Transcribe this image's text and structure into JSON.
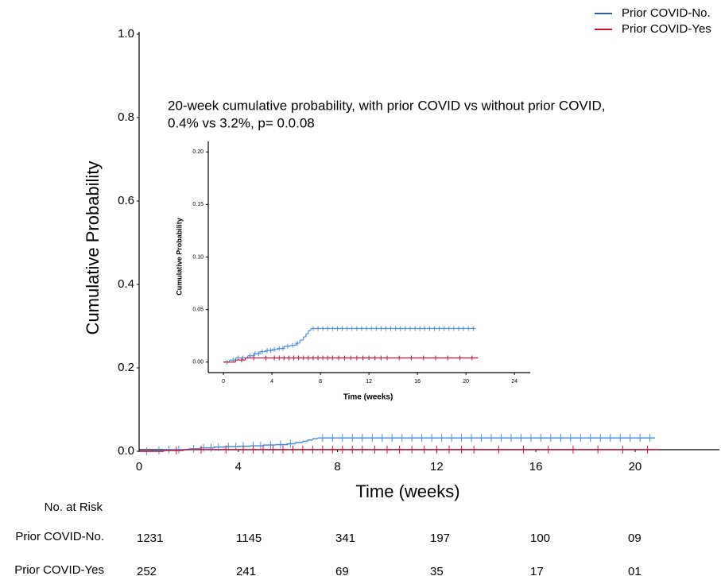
{
  "chart_data": [
    {
      "type": "step",
      "xlabel": "Time (weeks)",
      "ylabel": "Cumulative Probability",
      "annotation": [
        "20-week cumulative probability, with prior COVID  vs without prior COVID,",
        "0.4% vs 3.2%, p= 0.0.08"
      ],
      "xlim": [
        0,
        23.4
      ],
      "ylim": [
        0,
        1
      ],
      "xticks": [
        0,
        4,
        8,
        12,
        16,
        20
      ],
      "yticks": [
        {
          "value": 0,
          "label": "0.0"
        },
        0.2,
        0.4,
        0.6,
        0.8,
        {
          "value": 1,
          "label": "1.0"
        }
      ],
      "legend": "top-right",
      "series": [
        {
          "name": "Prior COVID-No.",
          "color": "#4a8fdc",
          "legend_color": "#2f5f9e",
          "x": [
            0,
            0.5,
            1,
            2,
            2.5,
            3,
            3.5,
            4,
            4.5,
            5,
            5.5,
            6,
            6.3,
            6.6,
            6.8,
            7,
            7.2,
            20.8
          ],
          "values": [
            0,
            0.002,
            0.004,
            0.006,
            0.008,
            0.01,
            0.011,
            0.012,
            0.013,
            0.015,
            0.016,
            0.018,
            0.021,
            0.024,
            0.027,
            0.03,
            0.032,
            0.032
          ],
          "censored": [
            0.3,
            0.8,
            1.2,
            1.6,
            2.2,
            2.6,
            2.9,
            3.2,
            3.6,
            3.9,
            4.2,
            4.6,
            4.9,
            5.3,
            5.7,
            6.1,
            7.4,
            7.8,
            8.2,
            8.6,
            9,
            9.4,
            9.8,
            10.2,
            10.6,
            11,
            11.4,
            11.8,
            12.2,
            12.6,
            13,
            13.4,
            13.8,
            14.2,
            14.6,
            15,
            15.4,
            15.8,
            16.2,
            16.6,
            17,
            17.4,
            17.8,
            18.2,
            18.6,
            19,
            19.4,
            19.8,
            20.2,
            20.6
          ]
        },
        {
          "name": "Prior COVID-Yes",
          "color": "#c8143c",
          "legend_color": "#c8102e",
          "x": [
            0,
            1,
            1.8,
            21
          ],
          "values": [
            0,
            0.002,
            0.004,
            0.004
          ],
          "censored": [
            1.5,
            2.5,
            3.5,
            4.2,
            4.6,
            5,
            5.4,
            5.8,
            6.2,
            6.6,
            7,
            7.4,
            7.8,
            8.2,
            8.6,
            9,
            9.5,
            10,
            10.5,
            11,
            11.5,
            12,
            12.5,
            13,
            13.5,
            14.5,
            15.5,
            16.5,
            17.5,
            18.5,
            19.5,
            20.5
          ]
        }
      ]
    },
    {
      "type": "step",
      "xlabel": "Time (weeks)",
      "ylabel": "Cumulative Probability",
      "xlim": [
        -1.25,
        25.3
      ],
      "ylim": [
        -0.01,
        0.21
      ],
      "xticks": [
        0,
        4,
        8,
        12,
        16,
        20,
        24
      ],
      "yticks": [
        {
          "value": 0,
          "label": "0.00"
        },
        {
          "value": 0.05,
          "label": "0.05"
        },
        {
          "value": 0.1,
          "label": "0.10"
        },
        {
          "value": 0.15,
          "label": "0.15"
        },
        {
          "value": 0.2,
          "label": "0.20"
        }
      ],
      "series": [
        {
          "color": "#4a8fdc",
          "x": [
            0,
            0.5,
            1,
            2,
            2.5,
            3,
            3.5,
            4,
            4.5,
            5,
            5.5,
            6,
            6.3,
            6.6,
            6.8,
            7,
            7.2,
            20.8
          ],
          "values": [
            0,
            0.002,
            0.004,
            0.006,
            0.008,
            0.01,
            0.011,
            0.012,
            0.013,
            0.015,
            0.016,
            0.018,
            0.021,
            0.024,
            0.027,
            0.03,
            0.032,
            0.032
          ],
          "censored": [
            0.3,
            0.8,
            1.2,
            1.6,
            2.2,
            2.6,
            2.9,
            3.2,
            3.6,
            3.9,
            4.2,
            4.6,
            4.9,
            5.3,
            5.7,
            6.1,
            7.4,
            7.8,
            8.2,
            8.6,
            9,
            9.4,
            9.8,
            10.2,
            10.6,
            11,
            11.4,
            11.8,
            12.2,
            12.6,
            13,
            13.4,
            13.8,
            14.2,
            14.6,
            15,
            15.4,
            15.8,
            16.2,
            16.6,
            17,
            17.4,
            17.8,
            18.2,
            18.6,
            19,
            19.4,
            19.8,
            20.2,
            20.6
          ]
        },
        {
          "color": "#c8143c",
          "x": [
            0,
            1,
            1.8,
            21
          ],
          "values": [
            0,
            0.002,
            0.004,
            0.004
          ],
          "censored": [
            1.5,
            2.5,
            3.5,
            4.2,
            4.6,
            5,
            5.4,
            5.8,
            6.2,
            6.6,
            7,
            7.4,
            7.8,
            8.2,
            8.6,
            9,
            9.5,
            10,
            10.5,
            11,
            11.5,
            12,
            12.5,
            13,
            13.5,
            14.5,
            15.5,
            16.5,
            17.5,
            18.5,
            19.5,
            20.5
          ]
        }
      ]
    }
  ],
  "risk_table": {
    "title": "No. at Risk",
    "rows": [
      {
        "name": "Prior COVID-No.",
        "values": [
          "1231",
          "1145",
          "341",
          "197",
          "100",
          "09"
        ]
      },
      {
        "name": "Prior COVID-Yes",
        "values": [
          "252",
          "241",
          "69",
          "35",
          "17",
          "01"
        ]
      }
    ]
  }
}
